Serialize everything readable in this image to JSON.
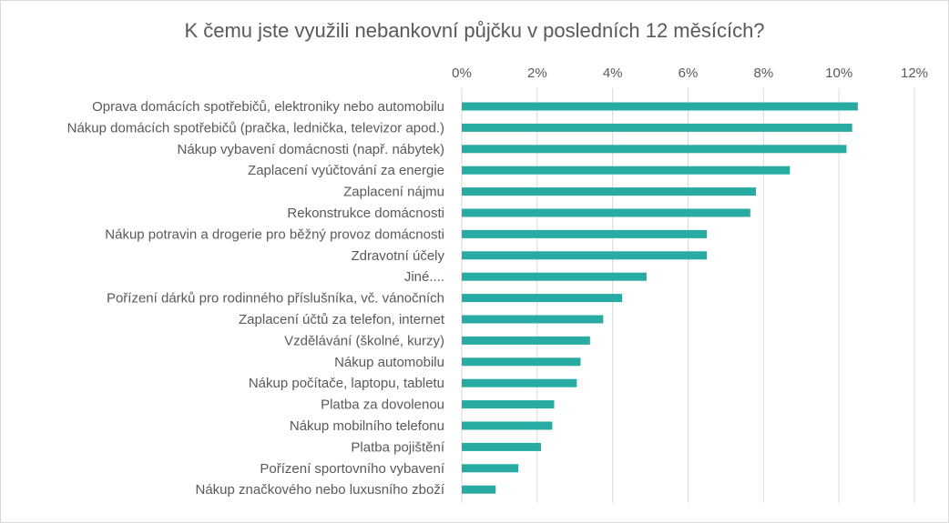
{
  "chart_data": {
    "type": "bar",
    "orientation": "horizontal",
    "title": "K čemu jste využili nebankovní půjčku v posledních 12 měsících?",
    "xlim": [
      0,
      12
    ],
    "ticks": [
      0,
      2,
      4,
      6,
      8,
      10,
      12
    ],
    "tick_labels": [
      "0%",
      "2%",
      "4%",
      "6%",
      "8%",
      "10%",
      "12%"
    ],
    "x_axis_position": "top",
    "grid": true,
    "legend": "none",
    "bar_color": "#27aba3",
    "categories": [
      "Oprava domácích spotřebičů, elektroniky nebo automobilu",
      "Nákup domácích spotřebičů (pračka, lednička, televizor apod.)",
      "Nákup vybavení domácnosti (např.  nábytek)",
      "Zaplacení vyúčtování za energie",
      "Zaplacení nájmu",
      "Rekonstrukce domácnosti",
      "Nákup potravin a drogerie pro běžný provoz domácnosti",
      "Zdravotní účely",
      "Jiné....",
      "Pořízení dárků pro rodinného příslušníka, vč. vánočních",
      "Zaplacení účtů za telefon, internet",
      "Vzdělávání (školné, kurzy)",
      "Nákup automobilu",
      "Nákup počítače, laptopu, tabletu",
      "Platba za dovolenou",
      "Nákup mobilního telefonu",
      "Platba pojištění",
      "Pořízení sportovního vybavení",
      "Nákup značkového nebo luxusního zboží"
    ],
    "values": [
      10.5,
      10.35,
      10.2,
      8.7,
      7.8,
      7.65,
      6.5,
      6.5,
      4.9,
      4.25,
      3.75,
      3.4,
      3.15,
      3.05,
      2.45,
      2.4,
      2.1,
      1.5,
      0.9
    ]
  }
}
